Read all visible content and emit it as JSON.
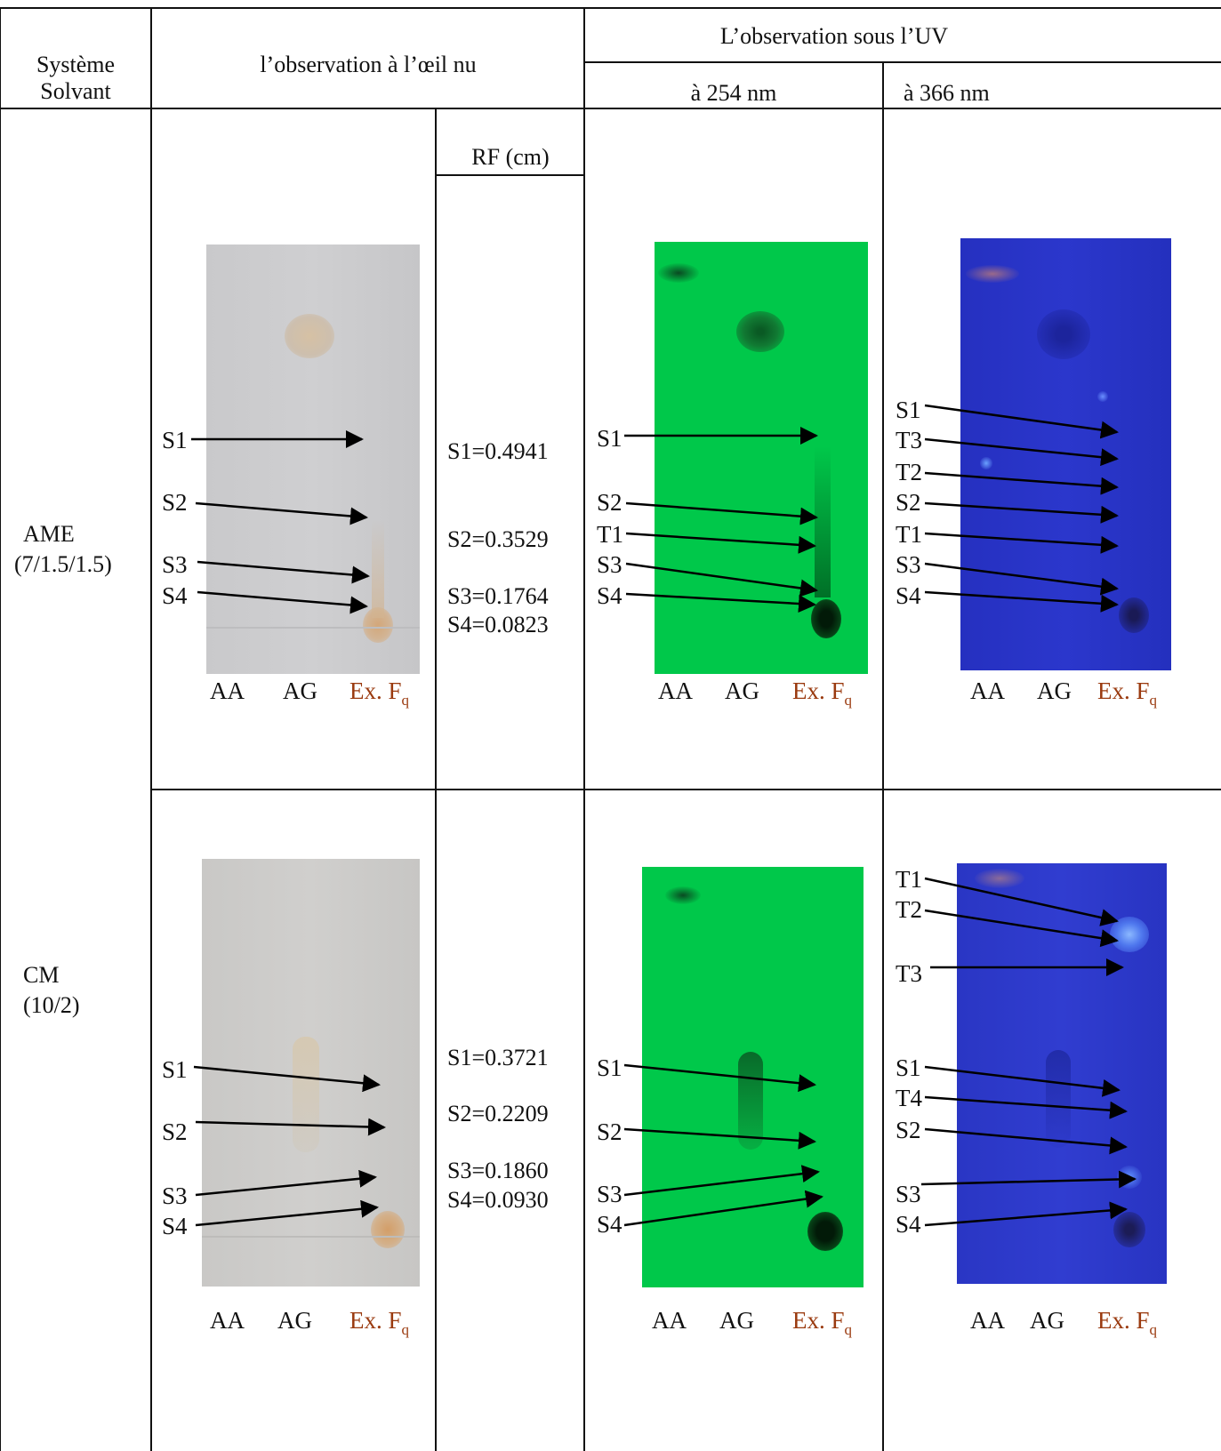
{
  "header": {
    "col1_line1": "Système",
    "col1_line2": "Solvant",
    "col2": "l’observation à l’œil nu",
    "uv_group": "L’observation sous l’UV",
    "uv254": "à 254 nm",
    "uv366": "à 366 nm",
    "rf_header": "RF (cm)"
  },
  "rows": [
    {
      "system_name": "AME",
      "system_ratio": "(7/1.5/1.5)",
      "rf": [
        "S1=0.4941",
        "S2=0.3529",
        "S3=0.1764",
        "S4=0.0823"
      ],
      "eye_labels": [
        "S1",
        "S2",
        "S3",
        "S4"
      ],
      "uv254_labels": [
        "S1",
        "S2",
        "T1",
        "S3",
        "S4"
      ],
      "uv366_labels": [
        "S1",
        "T3",
        "T2",
        "S2",
        "T1",
        "S3",
        "S4"
      ]
    },
    {
      "system_name": "CM",
      "system_ratio": "(10/2)",
      "rf": [
        "S1=0.3721",
        "S2=0.2209",
        "S3=0.1860",
        "S4=0.0930"
      ],
      "eye_labels": [
        "S1",
        "S2",
        "S3",
        "S4"
      ],
      "uv254_labels": [
        "S1",
        "S2",
        "S3",
        "S4"
      ],
      "uv366_labels": [
        "T1",
        "T2",
        "T3",
        "S1",
        "T4",
        "S2",
        "S3",
        "S4"
      ]
    }
  ],
  "lane_labels": {
    "aa": "AA",
    "ag": "AG",
    "exf": "Ex. F",
    "exf_sub": "q"
  },
  "colors": {
    "eye_plate": "#c7c7c9",
    "uv254_plate": "#00c84a",
    "uv366_plate": "#2733c4",
    "exf_text": "#9a3a0f"
  }
}
